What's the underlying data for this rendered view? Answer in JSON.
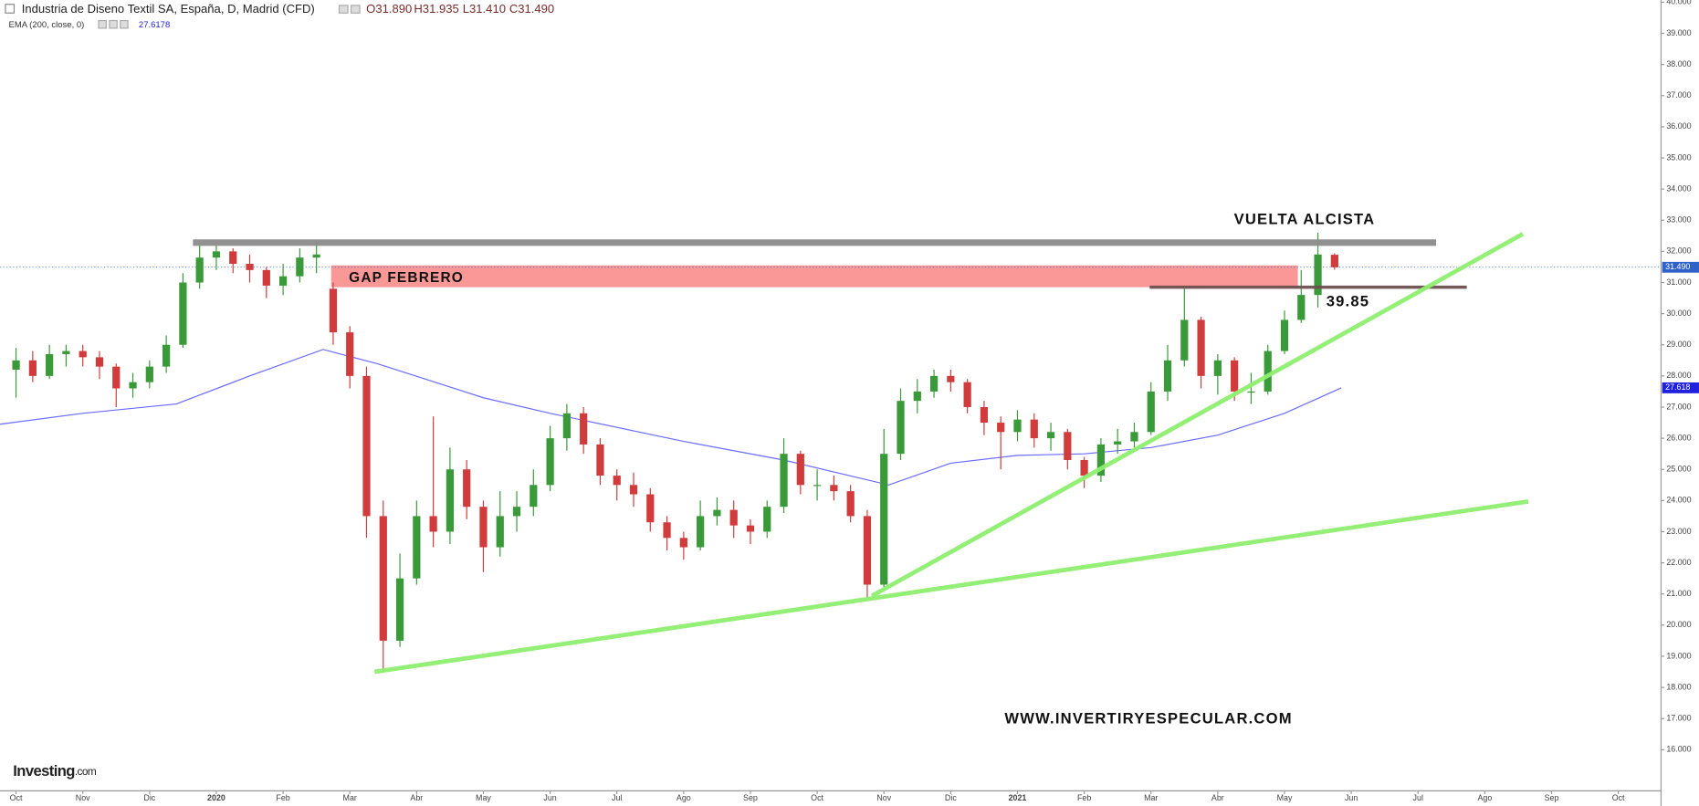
{
  "chart_data": {
    "type": "candlestick",
    "title": "Industria de Diseno Textil SA, España, D, Madrid (CFD)",
    "ohlc_labels": [
      "O31.890",
      "H31.935",
      "L31.410",
      "C31.490"
    ],
    "indicator_label": "EMA (200, close, 0)",
    "indicator_value": "27.6178",
    "x": [
      0,
      0.25,
      0.5,
      0.75,
      1,
      1.25,
      1.5,
      1.75,
      2,
      2.25,
      2.5,
      2.75,
      3,
      3.25,
      3.5,
      3.75,
      4,
      4.25,
      4.5,
      4.75,
      5,
      5.25,
      5.5,
      5.75,
      6,
      6.25,
      6.5,
      6.75,
      7,
      7.25,
      7.5,
      7.75,
      8,
      8.25,
      8.5,
      8.75,
      9,
      9.25,
      9.5,
      9.75,
      10,
      10.25,
      10.5,
      10.75,
      11,
      11.25,
      11.5,
      11.75,
      12,
      12.25,
      12.5,
      12.75,
      13,
      13.25,
      13.5,
      13.75,
      14,
      14.25,
      14.5,
      14.75,
      15,
      15.25,
      15.5,
      15.75,
      16,
      16.25,
      16.5,
      16.75,
      17,
      17.25,
      17.5,
      17.75,
      18,
      18.25,
      18.5,
      18.75,
      19,
      19.25,
      19.5,
      19.75
    ],
    "open": [
      28.2,
      28.5,
      28.0,
      28.7,
      28.8,
      28.6,
      28.3,
      27.6,
      27.8,
      28.3,
      29.0,
      31.0,
      31.8,
      32.0,
      31.6,
      31.4,
      30.9,
      31.2,
      31.8,
      30.8,
      29.4,
      28.0,
      23.5,
      19.5,
      21.5,
      23.5,
      23.0,
      25.0,
      23.8,
      22.5,
      23.5,
      23.8,
      24.5,
      26.0,
      26.8,
      25.8,
      24.8,
      24.5,
      24.2,
      23.3,
      22.8,
      22.5,
      23.5,
      23.7,
      23.2,
      23.0,
      23.8,
      25.5,
      24.5,
      24.5,
      24.3,
      23.5,
      21.3,
      25.5,
      27.2,
      27.5,
      28.0,
      27.8,
      27.0,
      26.5,
      26.2,
      26.6,
      26.0,
      26.2,
      25.3,
      24.8,
      25.8,
      25.9,
      26.2,
      27.5,
      28.5,
      29.8,
      28.0,
      28.5,
      27.5,
      27.5,
      28.8,
      29.8,
      30.6,
      31.89
    ],
    "high": [
      28.9,
      28.8,
      29.0,
      29.0,
      29.0,
      28.8,
      28.4,
      28.1,
      28.5,
      29.3,
      31.3,
      32.2,
      32.2,
      32.1,
      31.9,
      31.5,
      31.6,
      32.1,
      32.3,
      31.0,
      29.6,
      28.3,
      24.0,
      22.3,
      24.0,
      26.7,
      25.7,
      25.3,
      24.0,
      24.3,
      24.3,
      25.0,
      26.4,
      27.1,
      27.0,
      26.0,
      25.0,
      24.9,
      24.4,
      23.5,
      23.0,
      24.0,
      24.1,
      24.0,
      23.4,
      24.0,
      26.0,
      25.6,
      25.0,
      24.8,
      24.5,
      23.7,
      26.3,
      27.6,
      27.9,
      28.2,
      28.2,
      27.9,
      27.2,
      26.7,
      26.9,
      26.8,
      26.5,
      26.3,
      25.4,
      26.0,
      26.3,
      26.5,
      27.8,
      29.0,
      30.8,
      29.9,
      28.7,
      28.6,
      28.1,
      29.0,
      30.1,
      31.4,
      32.6,
      31.935
    ],
    "low": [
      27.3,
      27.8,
      27.9,
      28.3,
      28.3,
      27.9,
      27.0,
      27.3,
      27.6,
      28.1,
      28.9,
      30.8,
      31.4,
      31.3,
      31.0,
      30.5,
      30.6,
      31.0,
      31.3,
      29.0,
      27.6,
      22.8,
      18.5,
      19.3,
      21.3,
      22.5,
      22.6,
      23.4,
      21.7,
      22.2,
      23.0,
      23.5,
      24.3,
      25.6,
      25.5,
      24.5,
      24.0,
      23.8,
      23.0,
      22.4,
      22.1,
      22.4,
      23.2,
      22.8,
      22.6,
      22.8,
      23.6,
      24.2,
      24.0,
      24.0,
      23.3,
      20.9,
      21.2,
      25.3,
      26.8,
      27.3,
      27.5,
      26.8,
      26.1,
      25.0,
      25.9,
      25.7,
      25.6,
      25.0,
      24.4,
      24.6,
      25.5,
      25.7,
      26.1,
      27.2,
      28.3,
      27.6,
      27.4,
      27.2,
      27.1,
      27.4,
      28.7,
      29.7,
      30.2,
      31.41
    ],
    "close": [
      28.5,
      28.0,
      28.7,
      28.8,
      28.6,
      28.3,
      27.6,
      27.8,
      28.3,
      29.0,
      31.0,
      31.8,
      32.0,
      31.6,
      31.4,
      30.9,
      31.2,
      31.8,
      31.9,
      29.4,
      28.0,
      23.5,
      19.5,
      21.5,
      23.5,
      23.0,
      25.0,
      23.8,
      22.5,
      23.5,
      23.8,
      24.5,
      26.0,
      26.8,
      25.8,
      24.8,
      24.5,
      24.2,
      23.3,
      22.8,
      22.5,
      23.5,
      23.7,
      23.2,
      23.0,
      23.8,
      25.5,
      24.5,
      24.5,
      24.3,
      23.5,
      21.3,
      25.5,
      27.2,
      27.5,
      28.0,
      27.8,
      27.0,
      26.5,
      26.2,
      26.6,
      26.0,
      26.2,
      25.3,
      24.8,
      25.8,
      25.9,
      26.2,
      27.5,
      28.5,
      29.8,
      28.0,
      28.5,
      27.5,
      27.5,
      28.8,
      29.8,
      30.6,
      31.9,
      31.49
    ],
    "up_color": "#3a9a3a",
    "down_color": "#d23b3b",
    "ema": {
      "x": [
        -0.24,
        1,
        2.4,
        3.5,
        4.6,
        5.4,
        7,
        8,
        10,
        11.5,
        13.07,
        14,
        15,
        16,
        17,
        18,
        19,
        19.85
      ],
      "values": [
        26.45,
        26.8,
        27.1,
        28.0,
        28.85,
        28.4,
        27.3,
        26.8,
        25.9,
        25.3,
        24.5,
        25.2,
        25.45,
        25.5,
        25.7,
        26.1,
        26.8,
        27.6178
      ],
      "color": "#6b6bff"
    },
    "xlim": [
      -0.24,
      24.64
    ],
    "ylim": [
      14.68,
      40.07
    ],
    "xticks": [
      {
        "value": 0,
        "label": "Oct"
      },
      {
        "value": 1,
        "label": "Nov"
      },
      {
        "value": 2,
        "label": "Dic"
      },
      {
        "value": 3,
        "label": "2020"
      },
      {
        "value": 4,
        "label": "Feb"
      },
      {
        "value": 5,
        "label": "Mar"
      },
      {
        "value": 6,
        "label": "Abr"
      },
      {
        "value": 7,
        "label": "May"
      },
      {
        "value": 8,
        "label": "Jun"
      },
      {
        "value": 9,
        "label": "Jul"
      },
      {
        "value": 10,
        "label": "Ago"
      },
      {
        "value": 11,
        "label": "Sep"
      },
      {
        "value": 12,
        "label": "Oct"
      },
      {
        "value": 13,
        "label": "Nov"
      },
      {
        "value": 14,
        "label": "Dic"
      },
      {
        "value": 15,
        "label": "2021"
      },
      {
        "value": 16,
        "label": "Feb"
      },
      {
        "value": 17,
        "label": "Mar"
      },
      {
        "value": 18,
        "label": "Abr"
      },
      {
        "value": 19,
        "label": "May"
      },
      {
        "value": 20,
        "label": "Jun"
      },
      {
        "value": 21,
        "label": "Jul"
      },
      {
        "value": 22,
        "label": "Ago"
      },
      {
        "value": 23,
        "label": "Sep"
      },
      {
        "value": 24,
        "label": "Oct"
      }
    ],
    "yticks": [
      {
        "value": 16,
        "label": "16.000"
      },
      {
        "value": 17,
        "label": "17.000"
      },
      {
        "value": 18,
        "label": "18.000"
      },
      {
        "value": 19,
        "label": "19.000"
      },
      {
        "value": 20,
        "label": "20.000"
      },
      {
        "value": 21,
        "label": "21.000"
      },
      {
        "value": 22,
        "label": "22.000"
      },
      {
        "value": 23,
        "label": "23.000"
      },
      {
        "value": 24,
        "label": "24.000"
      },
      {
        "value": 25,
        "label": "25.000"
      },
      {
        "value": 26,
        "label": "26.000"
      },
      {
        "value": 27,
        "label": "27.000"
      },
      {
        "value": 28,
        "label": "28.000"
      },
      {
        "value": 29,
        "label": "29.000"
      },
      {
        "value": 30,
        "label": "30.000"
      },
      {
        "value": 31,
        "label": "31.000"
      },
      {
        "value": 32,
        "label": "32.000"
      },
      {
        "value": 33,
        "label": "33.000"
      },
      {
        "value": 34,
        "label": "34.000"
      },
      {
        "value": 35,
        "label": "35.000"
      },
      {
        "value": 36,
        "label": "36.000"
      },
      {
        "value": 37,
        "label": "37.000"
      },
      {
        "value": 38,
        "label": "38.000"
      },
      {
        "value": 39,
        "label": "39.000"
      },
      {
        "value": 40,
        "label": "40.000"
      }
    ],
    "lines": [
      {
        "x": [
          2.65,
          21.27
        ],
        "y": [
          32.28,
          32.28
        ],
        "color": "#8c8c8c",
        "width": 6
      },
      {
        "x": [
          16.98,
          21.73
        ],
        "y": [
          30.85,
          30.85
        ],
        "color": "#6e5050",
        "width": 3
      },
      {
        "x": [
          5.37,
          22.65
        ],
        "y": [
          18.5,
          23.97
        ],
        "color": "#8fef6f",
        "width": 4
      },
      {
        "x": [
          12.82,
          22.57
        ],
        "y": [
          20.94,
          32.56
        ],
        "color": "#8fef6f",
        "width": 4
      }
    ],
    "zones": [
      {
        "x": [
          4.72,
          19.2
        ],
        "y": [
          30.85,
          31.55
        ],
        "color": "#fa8c8c"
      }
    ],
    "price_badges": [
      {
        "value": 31.49,
        "label": "31.490",
        "color": "#2f62c9"
      },
      {
        "value": 27.618,
        "label": "27.618",
        "color": "#2020e0"
      }
    ],
    "annotations": [
      "VUELTA ALCISTA",
      "GAP FEBRERO",
      "39.85",
      "WWW.INVERTIRYESPECULAR.COM"
    ],
    "source_logo": "Investing",
    "source_suffix": ".com"
  }
}
